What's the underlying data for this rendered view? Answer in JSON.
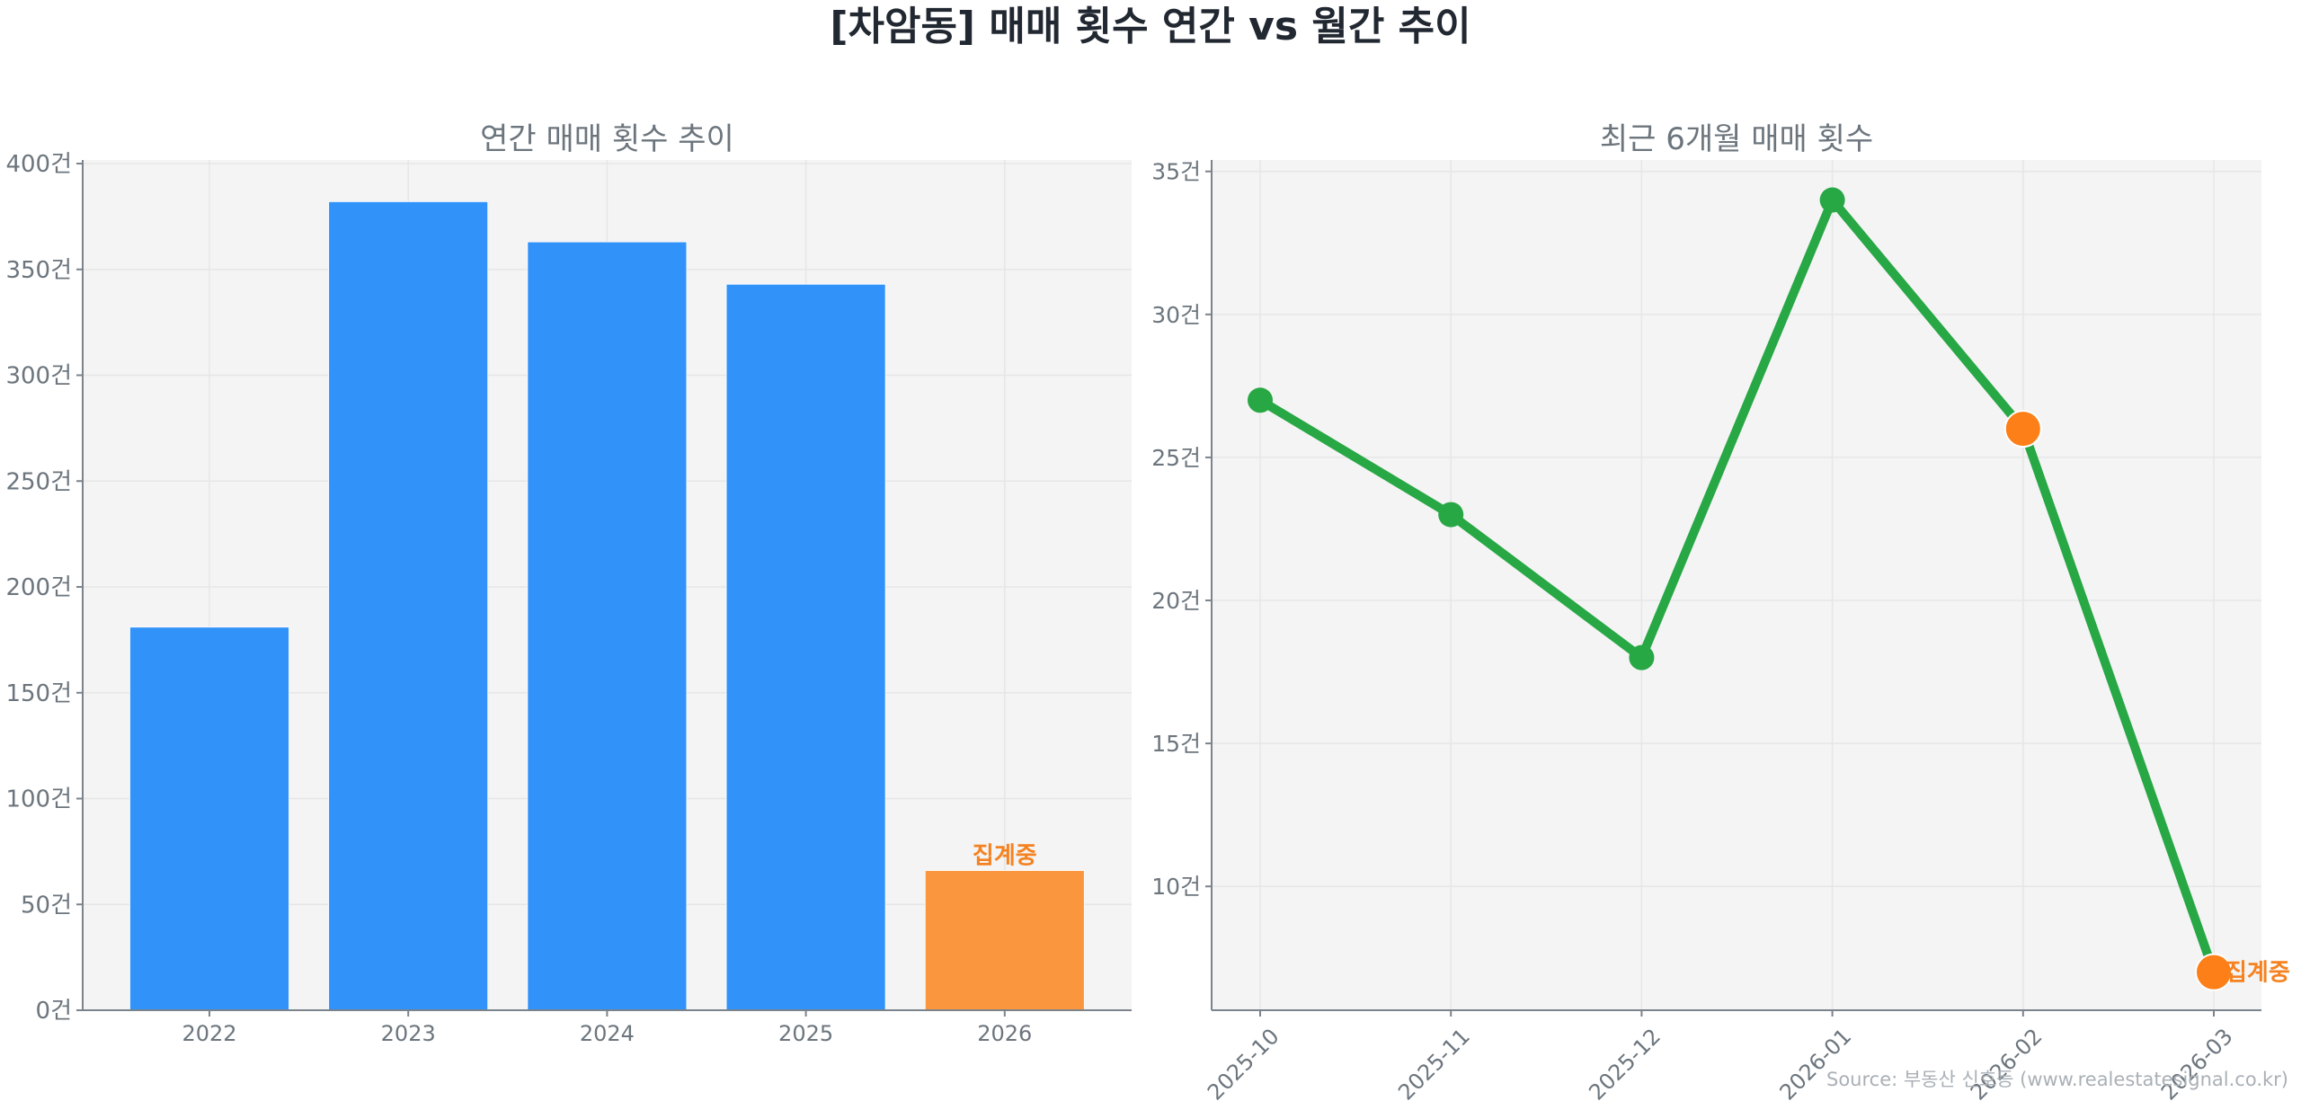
{
  "page": {
    "title": "[차암동] 매매 횟수 연간 vs 월간 추이",
    "source": "Source: 부동산 신호등 (www.realestatesignal.co.kr)"
  },
  "colors": {
    "bar_primary": "#3192FA",
    "bar_partial": "#F9963E",
    "annotation": "#F58220",
    "line": "#28A745",
    "marker_partial": "#FD7F17",
    "axis_text": "#6C757D",
    "title_text": "#212529",
    "plot_bg": "#F4F4F4",
    "grid": "#E6E6E6"
  },
  "chart_data": [
    {
      "type": "bar",
      "title": "연간 매매 횟수 추이",
      "categories": [
        "2022",
        "2023",
        "2024",
        "2025",
        "2026"
      ],
      "values": [
        181,
        382,
        363,
        343,
        66
      ],
      "partial_index": 4,
      "annotation": "집계중",
      "xlabel": "",
      "ylabel": "",
      "ylim": [
        0,
        401.7
      ],
      "yticks": [
        0,
        50,
        100,
        150,
        200,
        250,
        300,
        350,
        400
      ],
      "ytick_suffix": "건",
      "grid": true,
      "legend": "none"
    },
    {
      "type": "line",
      "title": "최근 6개월 매매 횟수",
      "categories": [
        "2025-10",
        "2025-11",
        "2025-12",
        "2026-01",
        "2026-02",
        "2026-03"
      ],
      "values": [
        27,
        23,
        18,
        34,
        26,
        7
      ],
      "highlighted_indices": [
        4,
        5
      ],
      "annotation": "집계중",
      "annotation_index": 5,
      "xlabel": "",
      "ylabel": "",
      "ylim": [
        5.67,
        35.4
      ],
      "yticks": [
        10,
        15,
        20,
        25,
        30,
        35
      ],
      "ytick_suffix": "건",
      "xtick_rotation": -45,
      "grid": true,
      "legend": "none"
    }
  ]
}
